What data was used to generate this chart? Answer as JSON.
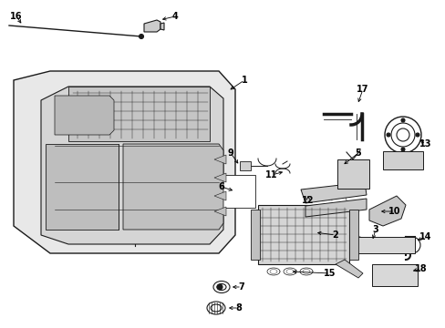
{
  "background_color": "#ffffff",
  "figsize": [
    4.89,
    3.6
  ],
  "dpi": 100,
  "line_color": "#1a1a1a",
  "label_fontsize": 7.0,
  "gray_fill": "#e8e8e8",
  "mid_gray": "#cccccc",
  "dark_gray": "#aaaaaa"
}
